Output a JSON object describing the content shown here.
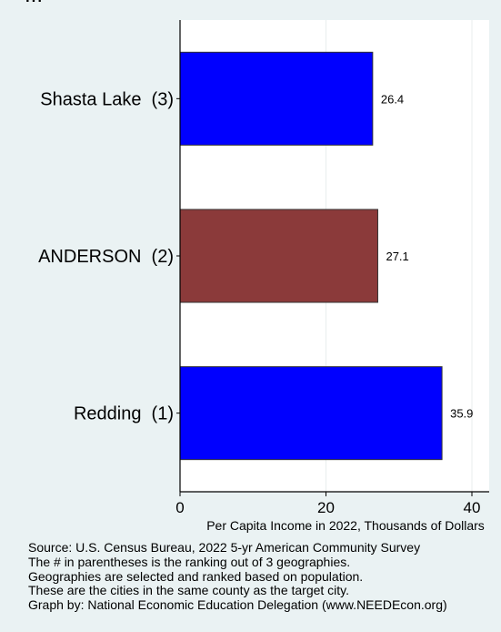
{
  "heading": "...",
  "chart_data": {
    "type": "bar",
    "orientation": "horizontal",
    "categories": [
      "Shasta Lake  (3)",
      "ANDERSON  (2)",
      "Redding  (1)"
    ],
    "values": [
      26.4,
      27.1,
      35.9
    ],
    "value_labels": [
      "26.4",
      "27.1",
      "35.9"
    ],
    "bar_colors": [
      "#0000ff",
      "#8b3a3a",
      "#0000ff"
    ],
    "xlabel": "Per Capita Income in 2022, Thousands of Dollars",
    "ylabel": "",
    "xlim": [
      0,
      42
    ],
    "xticks": [
      0,
      20,
      40
    ],
    "xtick_labels": [
      "0",
      "20",
      "40"
    ],
    "grid": true
  },
  "source_lines": [
    "Source: U.S. Census Bureau, 2022 5-yr American Community Survey",
    "The # in parentheses is the ranking out of 3 geographies.",
    "Geographies are selected and ranked based on population.",
    "These are the cities in the same county as the target city.",
    "Graph by: National Economic Education Delegation (www.NEEDEcon.org)"
  ]
}
